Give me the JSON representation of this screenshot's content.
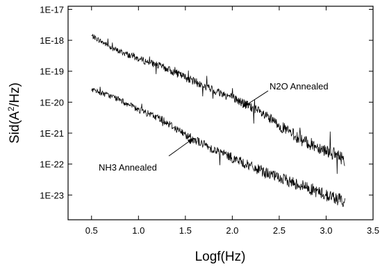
{
  "chart_data": {
    "type": "line",
    "xlabel": "Logf(Hz)",
    "ylabel": "Sid(A²/Hz)",
    "ylabel_parts": {
      "prefix": "Sid(A",
      "sup": "2",
      "suffix": "/Hz)"
    },
    "xlim": [
      0.25,
      3.5
    ],
    "ylim_log10": [
      -23.8,
      -16.9
    ],
    "y_scale": "log",
    "x_ticks": [
      0.5,
      1.0,
      1.5,
      2.0,
      2.5,
      3.0,
      3.5
    ],
    "x_tick_labels": [
      "0.5",
      "1.0",
      "1.5",
      "2.0",
      "2.5",
      "3.0",
      "3.5"
    ],
    "y_ticks_log10": [
      -17,
      -18,
      -19,
      -20,
      -21,
      -22,
      -23
    ],
    "y_tick_labels": [
      "1E-17",
      "1E-18",
      "1E-19",
      "1E-20",
      "1E-21",
      "1E-22",
      "1E-23"
    ],
    "grid": false,
    "series": [
      {
        "x": [
          0.5,
          0.75,
          1.0,
          1.25,
          1.5,
          1.75,
          2.0,
          2.25,
          2.5,
          2.75,
          3.0,
          3.2
        ],
        "y_log10": [
          -17.85,
          -18.3,
          -18.6,
          -18.85,
          -19.2,
          -19.55,
          -19.85,
          -20.25,
          -20.75,
          -21.25,
          -21.55,
          -21.85
        ],
        "annotation": "N2O Annealed"
      },
      {
        "x": [
          0.5,
          0.75,
          1.0,
          1.25,
          1.5,
          1.75,
          2.0,
          2.25,
          2.5,
          2.75,
          3.0,
          3.2
        ],
        "y_log10": [
          -19.6,
          -19.85,
          -20.25,
          -20.55,
          -21.05,
          -21.45,
          -21.8,
          -22.15,
          -22.45,
          -22.7,
          -23.0,
          -23.2
        ],
        "annotation": "NH3 Annealed"
      }
    ]
  }
}
